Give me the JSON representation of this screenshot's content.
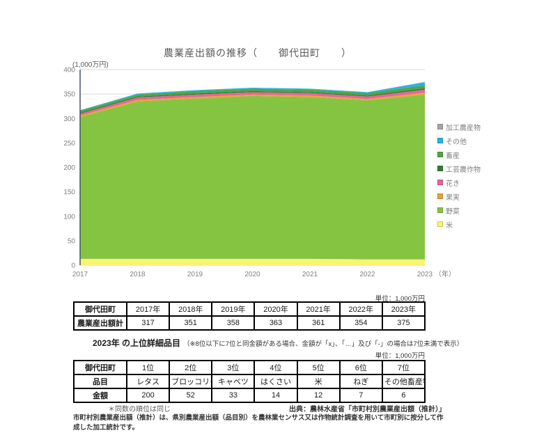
{
  "chart": {
    "title": "農業産出額の推移（　　御代田町　　）",
    "unit_label": "(1,000万円)",
    "year_suffix": "（年）"
  },
  "chart_data": {
    "type": "area",
    "stacked": true,
    "title": "農業産出額の推移（御代田町）",
    "ylabel": "1,000万円",
    "xlabel": "年",
    "ylim": [
      0,
      400
    ],
    "ytick_interval": 50,
    "grid": true,
    "legend_position": "right",
    "x": [
      2017,
      2018,
      2019,
      2020,
      2021,
      2022,
      2023
    ],
    "totals": [
      317,
      351,
      358,
      363,
      361,
      354,
      375
    ],
    "series": [
      {
        "name": "米",
        "color": "#fbf373",
        "values": [
          13,
          13,
          13,
          13,
          13,
          12,
          12
        ]
      },
      {
        "name": "野菜",
        "color": "#85c441",
        "values": [
          290,
          322,
          328,
          333,
          331,
          325,
          337
        ]
      },
      {
        "name": "果実",
        "color": "#e7a33b",
        "values": [
          3,
          3,
          3,
          3,
          3,
          3,
          4
        ]
      },
      {
        "name": "花き",
        "color": "#e8639d",
        "values": [
          4,
          5,
          5,
          5,
          5,
          5,
          6
        ]
      },
      {
        "name": "工芸農作物",
        "color": "#2f7d31",
        "values": [
          2,
          2,
          2,
          2,
          2,
          2,
          3
        ]
      },
      {
        "name": "畜産",
        "color": "#52a447",
        "values": [
          4,
          4,
          5,
          5,
          5,
          5,
          6
        ]
      },
      {
        "name": "その他",
        "color": "#29b2e6",
        "values": [
          1,
          2,
          2,
          2,
          2,
          2,
          6
        ]
      },
      {
        "name": "加工農産物",
        "color": "#a6a6a6",
        "values": [
          0,
          0,
          0,
          0,
          0,
          0,
          1
        ]
      }
    ],
    "legend": [
      {
        "label": "加工農産物",
        "color": "#a6a6a6"
      },
      {
        "label": "その他",
        "color": "#29b2e6"
      },
      {
        "label": "畜産",
        "color": "#52a447"
      },
      {
        "label": "工芸農作物",
        "color": "#2f7d31"
      },
      {
        "label": "花き",
        "color": "#e8639d"
      },
      {
        "label": "果実",
        "color": "#e7a33b"
      },
      {
        "label": "野菜",
        "color": "#85c441"
      },
      {
        "label": "米",
        "color": "#fbf373"
      }
    ]
  },
  "table1": {
    "unit_label": "単位：1,000万円",
    "header": [
      "御代田町",
      "2017年",
      "2018年",
      "2019年",
      "2020年",
      "2021年",
      "2022年",
      "2023年"
    ],
    "rows": [
      [
        "農業産出額計",
        "317",
        "351",
        "358",
        "363",
        "361",
        "354",
        "375"
      ]
    ]
  },
  "section2": {
    "heading": "2023年 の上位詳細品目",
    "note": "（※8位以下に7位と同金額がある場合、金額が「x」、「…」及び「-」の場合は7位未満で表示）",
    "unit_label": "単位：1,000万円"
  },
  "table2": {
    "header": [
      "御代田町",
      "1位",
      "2位",
      "3位",
      "4位",
      "5位",
      "6位",
      "7位"
    ],
    "rows": [
      [
        "品目",
        "レタス",
        "ブロッコリー",
        "キャベツ",
        "はくさい",
        "米",
        "ねぎ",
        "その他畜産物"
      ],
      [
        "金額",
        "200",
        "52",
        "33",
        "14",
        "12",
        "7",
        "6"
      ]
    ]
  },
  "footer": {
    "tie_note": "＊同数の順位は同じ",
    "source": "出典：農林水産省「市町村別農業産出額（推計）」",
    "description": "市町村別農業産出額（推計）は、県別農業産出額（品目別）を農林業センサス又は作物統計調査を用いて市町別に按分して作成した加工統計です。"
  }
}
